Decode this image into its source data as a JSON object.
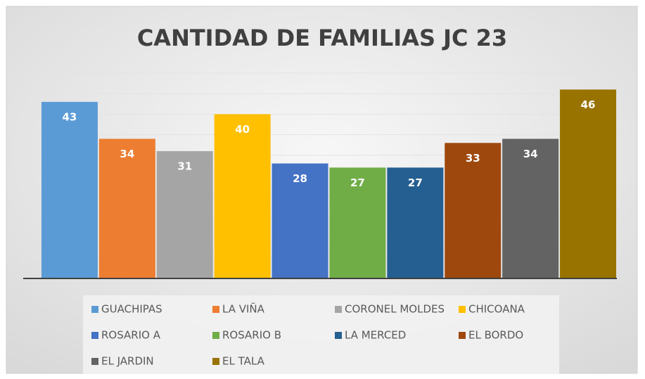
{
  "chart_data": {
    "type": "bar",
    "title": "CANTIDAD DE FAMILIAS JC 23",
    "categories": [
      "GUACHIPAS",
      "LA VIÑA",
      "CORONEL MOLDES",
      "CHICOANA",
      "ROSARIO A",
      "ROSARIO B",
      "LA MERCED",
      "EL BORDO",
      "EL JARDIN",
      "EL TALA"
    ],
    "values": [
      43,
      34,
      31,
      40,
      28,
      27,
      27,
      33,
      34,
      46
    ],
    "colors": [
      "#5b9bd5",
      "#ed7d31",
      "#a5a5a5",
      "#ffc000",
      "#4472c4",
      "#70ad47",
      "#255e91",
      "#9e480e",
      "#636363",
      "#997300"
    ],
    "ylim": [
      0,
      50
    ],
    "yticks": [
      0,
      5,
      10,
      15,
      20,
      25,
      30,
      35,
      40,
      45,
      50
    ],
    "grid": true,
    "legend": "bottom"
  }
}
